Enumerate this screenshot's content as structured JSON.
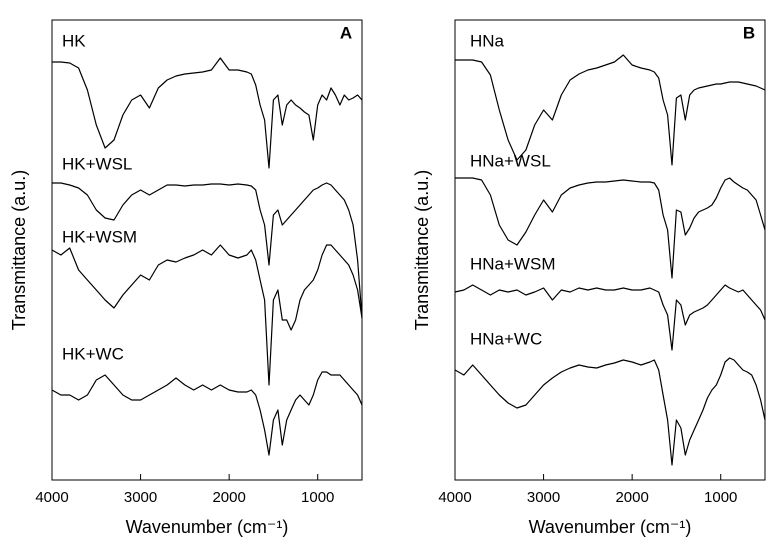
{
  "chart_data": [
    {
      "type": "line",
      "panel_label": "A",
      "xlabel": "Wavenumber (cm⁻¹)",
      "ylabel": "Transmittance (a.u.)",
      "x": [
        4000,
        3900,
        3800,
        3700,
        3600,
        3500,
        3400,
        3300,
        3200,
        3100,
        3000,
        2900,
        2800,
        2700,
        2600,
        2500,
        2400,
        2300,
        2200,
        2100,
        2000,
        1900,
        1800,
        1750,
        1700,
        1650,
        1600,
        1550,
        1500,
        1450,
        1400,
        1350,
        1300,
        1250,
        1200,
        1150,
        1100,
        1050,
        1000,
        950,
        900,
        850,
        800,
        750,
        700,
        650,
        600,
        550,
        500
      ],
      "xlim": [
        4000,
        500
      ],
      "xticks": [
        4000,
        3000,
        2000,
        1000
      ],
      "ylim": [
        0,
        460
      ],
      "series": [
        {
          "name": "HK",
          "color": "#000000",
          "values": [
            418,
            418,
            417,
            412,
            390,
            355,
            332,
            340,
            365,
            380,
            385,
            372,
            392,
            400,
            404,
            406,
            407,
            408,
            410,
            422,
            410,
            410,
            408,
            406,
            395,
            375,
            360,
            312,
            380,
            385,
            355,
            375,
            380,
            375,
            372,
            368,
            365,
            340,
            375,
            385,
            380,
            392,
            385,
            375,
            385,
            380,
            382,
            385,
            380
          ]
        },
        {
          "name": "HK+WSL",
          "color": "#000000",
          "values": [
            297,
            297,
            295,
            292,
            285,
            270,
            262,
            260,
            275,
            285,
            290,
            285,
            290,
            295,
            295,
            294,
            295,
            295,
            296,
            296,
            295,
            296,
            295,
            294,
            290,
            270,
            255,
            215,
            265,
            270,
            255,
            260,
            265,
            270,
            275,
            280,
            285,
            290,
            292,
            295,
            297,
            295,
            290,
            285,
            280,
            270,
            255,
            220,
            162
          ]
        },
        {
          "name": "HK+WSM",
          "color": "#000000",
          "values": [
            230,
            225,
            232,
            210,
            200,
            190,
            180,
            172,
            185,
            195,
            205,
            200,
            215,
            220,
            218,
            222,
            225,
            230,
            225,
            235,
            225,
            222,
            225,
            230,
            220,
            200,
            180,
            95,
            180,
            190,
            160,
            160,
            150,
            160,
            180,
            190,
            195,
            200,
            210,
            225,
            235,
            235,
            230,
            225,
            220,
            215,
            205,
            190,
            162
          ]
        },
        {
          "name": "HK+WC",
          "color": "#000000",
          "values": [
            90,
            85,
            85,
            80,
            85,
            100,
            105,
            95,
            85,
            80,
            80,
            85,
            90,
            95,
            102,
            95,
            90,
            95,
            90,
            95,
            90,
            88,
            88,
            90,
            85,
            70,
            50,
            25,
            60,
            70,
            35,
            60,
            70,
            80,
            85,
            80,
            75,
            85,
            100,
            108,
            108,
            105,
            105,
            105,
            100,
            95,
            90,
            85,
            75
          ]
        }
      ]
    },
    {
      "type": "line",
      "panel_label": "B",
      "xlabel": "Wavenumber (cm⁻¹)",
      "ylabel": "Transmittance (a.u.)",
      "x": [
        4000,
        3900,
        3800,
        3700,
        3600,
        3500,
        3400,
        3300,
        3200,
        3100,
        3000,
        2900,
        2800,
        2700,
        2600,
        2500,
        2400,
        2300,
        2200,
        2100,
        2000,
        1900,
        1800,
        1750,
        1700,
        1650,
        1600,
        1550,
        1500,
        1450,
        1400,
        1350,
        1300,
        1250,
        1200,
        1150,
        1100,
        1050,
        1000,
        950,
        900,
        850,
        800,
        750,
        700,
        650,
        600,
        550,
        500
      ],
      "xlim": [
        4000,
        500
      ],
      "xticks": [
        4000,
        3000,
        2000,
        1000
      ],
      "ylim": [
        0,
        460
      ],
      "series": [
        {
          "name": "HNa",
          "color": "#000000",
          "values": [
            420,
            420,
            420,
            418,
            405,
            370,
            340,
            320,
            330,
            355,
            370,
            360,
            385,
            400,
            406,
            410,
            412,
            415,
            418,
            425,
            415,
            412,
            410,
            408,
            402,
            380,
            365,
            315,
            382,
            385,
            360,
            385,
            390,
            392,
            393,
            394,
            395,
            396,
            396,
            397,
            398,
            398,
            398,
            397,
            396,
            395,
            394,
            392,
            390
          ]
        },
        {
          "name": "HNa+WSL",
          "color": "#000000",
          "values": [
            302,
            302,
            302,
            300,
            285,
            255,
            240,
            235,
            248,
            265,
            280,
            268,
            285,
            292,
            295,
            297,
            298,
            298,
            299,
            300,
            299,
            298,
            298,
            297,
            290,
            265,
            250,
            202,
            270,
            268,
            245,
            252,
            262,
            268,
            270,
            272,
            275,
            282,
            292,
            300,
            302,
            298,
            295,
            292,
            290,
            285,
            280,
            265,
            250
          ]
        },
        {
          "name": "HNa+WSM",
          "color": "#000000",
          "values": [
            188,
            190,
            195,
            190,
            185,
            190,
            188,
            190,
            185,
            188,
            192,
            180,
            190,
            188,
            192,
            190,
            192,
            190,
            190,
            192,
            190,
            190,
            192,
            190,
            188,
            175,
            165,
            130,
            180,
            175,
            155,
            165,
            168,
            170,
            172,
            175,
            180,
            185,
            190,
            195,
            192,
            190,
            188,
            190,
            185,
            180,
            175,
            170,
            160
          ]
        },
        {
          "name": "HNa+WC",
          "color": "#000000",
          "values": [
            110,
            105,
            115,
            105,
            95,
            85,
            77,
            72,
            75,
            85,
            95,
            102,
            108,
            112,
            115,
            113,
            112,
            115,
            117,
            120,
            118,
            115,
            118,
            120,
            110,
            85,
            60,
            15,
            60,
            52,
            25,
            40,
            50,
            60,
            70,
            82,
            90,
            95,
            105,
            118,
            122,
            120,
            115,
            110,
            108,
            105,
            95,
            80,
            60
          ]
        }
      ]
    }
  ]
}
